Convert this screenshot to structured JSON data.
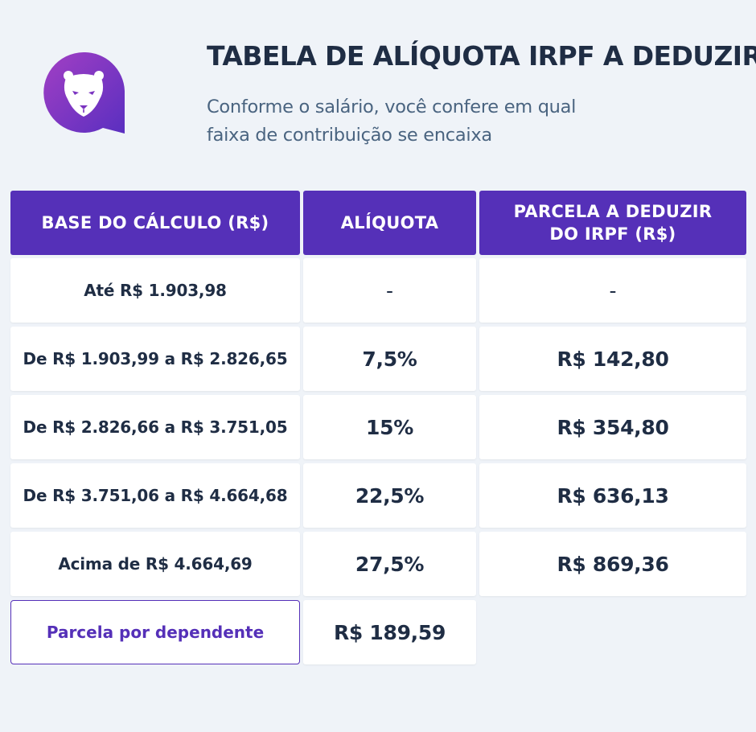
{
  "header": {
    "title": "TABELA DE ALÍQUOTA IRPF A DEDUZIR",
    "subtitle_line1": "Conforme o salário, você confere em qual",
    "subtitle_line2": "faixa de contribuição se encaixa",
    "logo_icon": "panther-head-chat-bubble-icon"
  },
  "table": {
    "columns": {
      "base": "BASE DO CÁLCULO (R$)",
      "aliquota": "ALÍQUOTA",
      "parcela_line1": "PARCELA A DEDUZIR",
      "parcela_line2": "DO IRPF (R$)"
    },
    "rows": [
      {
        "base": "Até R$ 1.903,98",
        "aliquota": "-",
        "parcela": "-"
      },
      {
        "base": "De R$ 1.903,99 a R$ 2.826,65",
        "aliquota": "7,5%",
        "parcela": "R$ 142,80"
      },
      {
        "base": "De R$ 2.826,66 a R$ 3.751,05",
        "aliquota": "15%",
        "parcela": "R$ 354,80"
      },
      {
        "base": "De R$ 3.751,06 a R$ 4.664,68",
        "aliquota": "22,5%",
        "parcela": "R$ 636,13"
      },
      {
        "base": "Acima de R$ 4.664,69",
        "aliquota": "27,5%",
        "parcela": "R$ 869,36"
      }
    ],
    "dependent": {
      "label": "Parcela por dependente",
      "value": "R$ 189,59"
    }
  },
  "colors": {
    "brand_purple": "#5530b8",
    "background": "#eff3f8",
    "text_dark": "#1f2d44",
    "text_muted": "#4a6480"
  }
}
